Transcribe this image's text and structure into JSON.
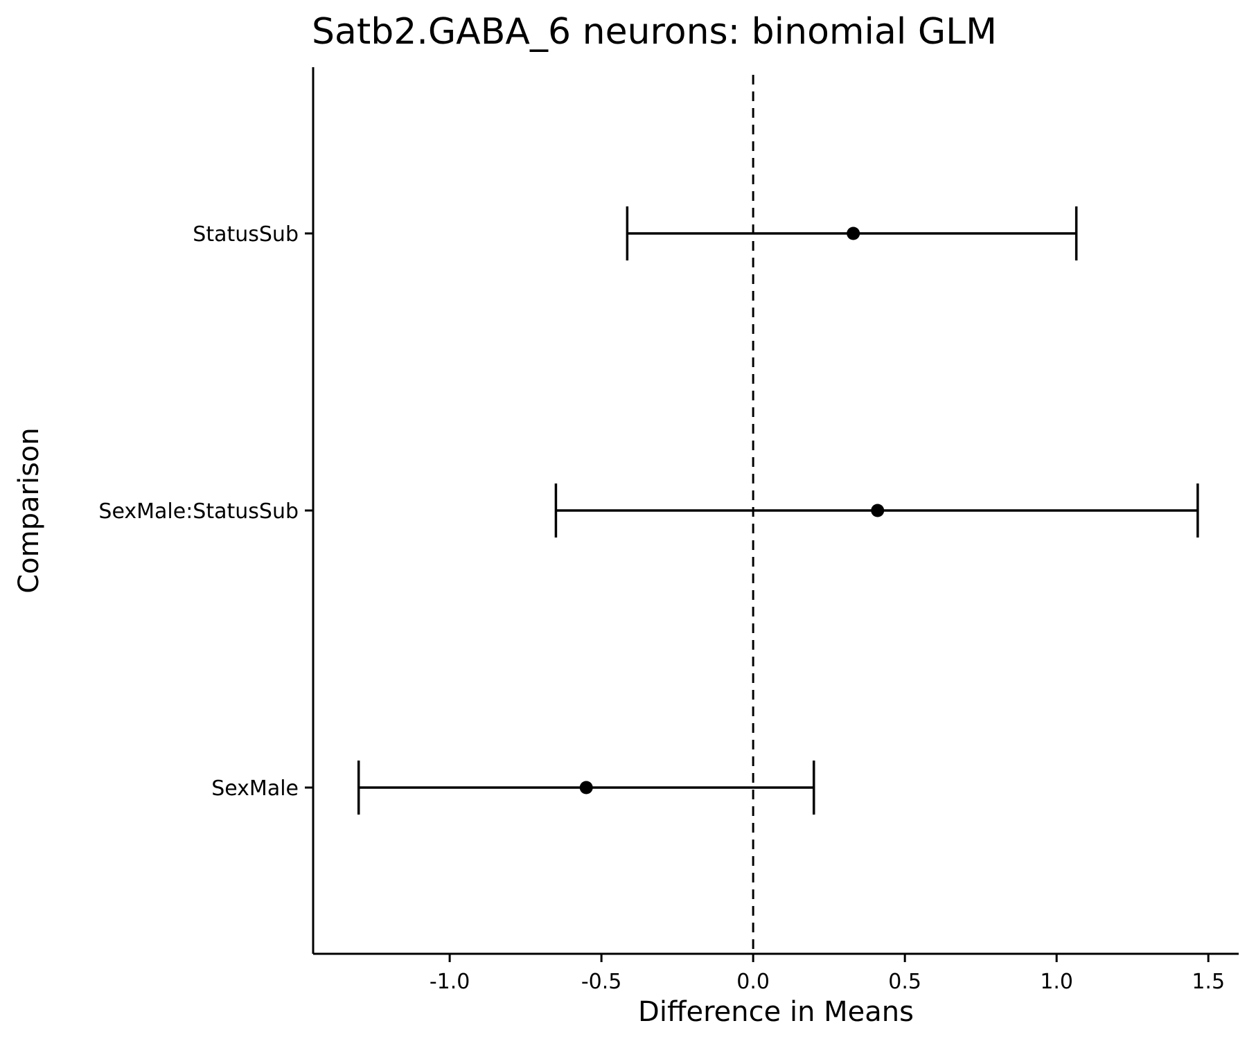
{
  "chart_data": {
    "type": "scatter",
    "subtype": "forest-plot",
    "title": "Satb2.GABA_6 neurons: binomial GLM",
    "xlabel": "Difference in Means",
    "ylabel": "Comparison",
    "xlim": [
      -1.45,
      1.6
    ],
    "xticks": [
      -1.0,
      -0.5,
      0.0,
      0.5,
      1.0,
      1.5
    ],
    "xtick_labels": [
      "-1.0",
      "-0.5",
      "0.0",
      "0.5",
      "1.0",
      "1.5"
    ],
    "reference_line": {
      "x": 0.0,
      "style": "dashed"
    },
    "grid": false,
    "legend": "none",
    "color": "#000000",
    "rows": [
      {
        "label": "StatusSub",
        "estimate": 0.33,
        "lower": -0.415,
        "upper": 1.065
      },
      {
        "label": "SexMale:StatusSub",
        "estimate": 0.41,
        "lower": -0.65,
        "upper": 1.465
      },
      {
        "label": "SexMale",
        "estimate": -0.55,
        "lower": -1.3,
        "upper": 0.2
      }
    ]
  }
}
